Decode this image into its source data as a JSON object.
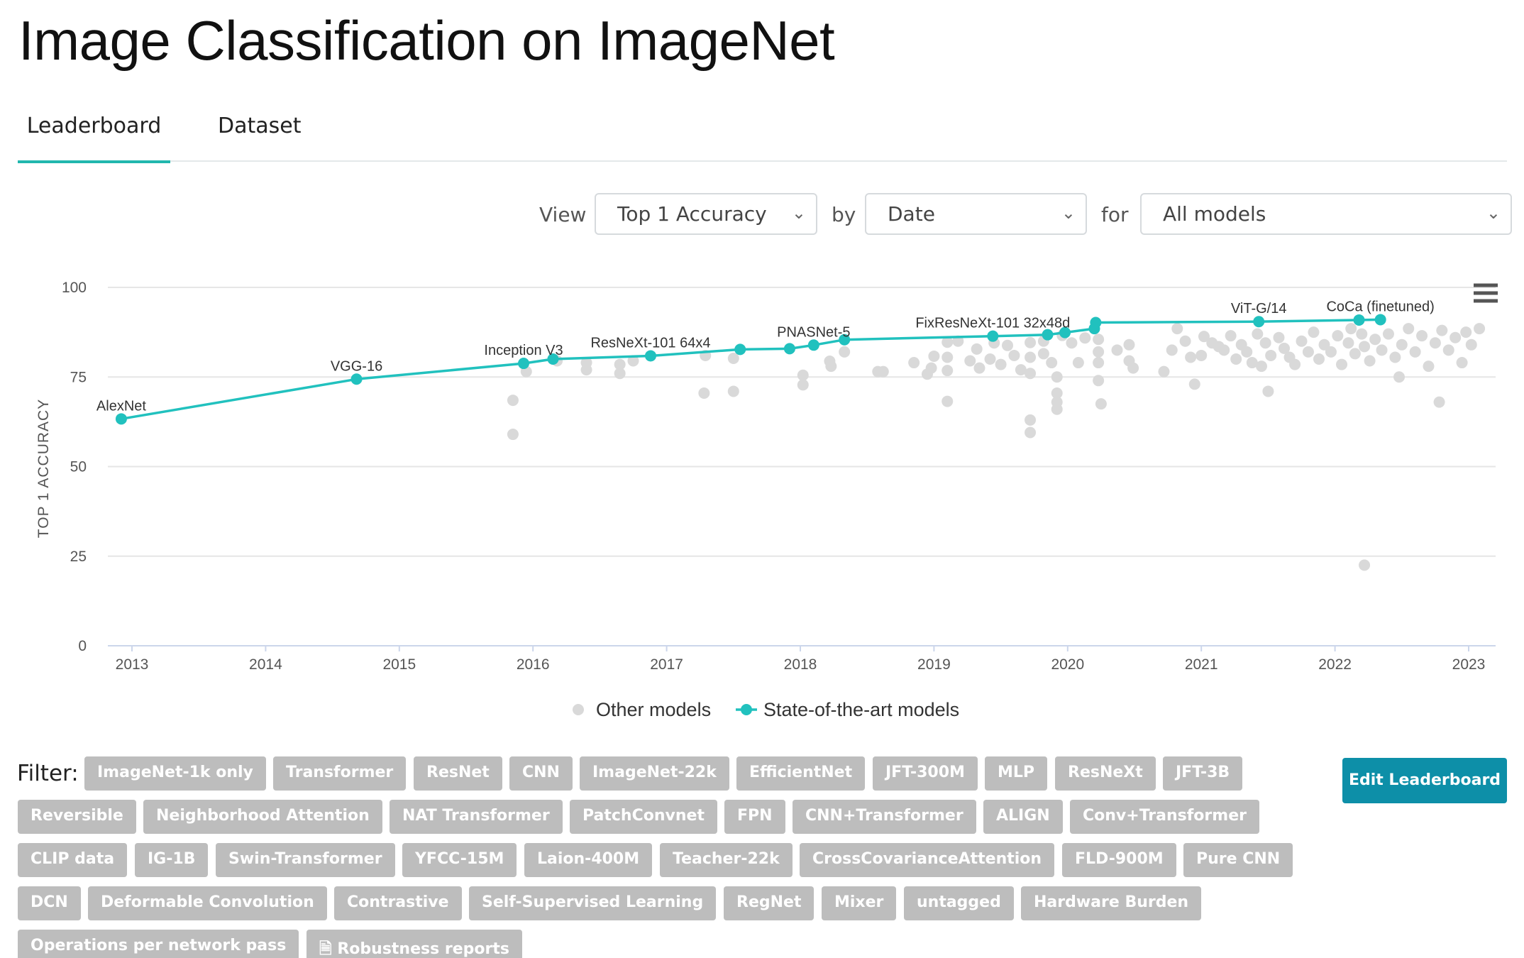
{
  "page": {
    "title": "Image Classification on ImageNet"
  },
  "tabs": [
    {
      "label": "Leaderboard"
    },
    {
      "label": "Dataset"
    }
  ],
  "controls": {
    "view_label": "View",
    "view_value": "Top 1 Accuracy",
    "by_label": "by",
    "by_value": "Date",
    "for_label": "for",
    "for_value": "All models"
  },
  "filter": {
    "label": "Filter:",
    "tags": [
      "ImageNet-1k only",
      "Transformer",
      "ResNet",
      "CNN",
      "ImageNet-22k",
      "EfficientNet",
      "JFT-300M",
      "MLP",
      "ResNeXt",
      "JFT-3B",
      "Reversible",
      "Neighborhood Attention",
      "NAT Transformer",
      "PatchConvnet",
      "FPN",
      "CNN+Transformer",
      "ALIGN",
      "Conv+Transformer",
      "CLIP data",
      "IG-1B",
      "Swin-Transformer",
      "YFCC-15M",
      "Laion-400M",
      "Teacher-22k",
      "CrossCovarianceAttention",
      "FLD-900M",
      "Pure CNN",
      "DCN",
      "Deformable Convolution",
      "Contrastive",
      "Self-Supervised Learning",
      "RegNet",
      "Mixer",
      "untagged",
      "Hardware Burden",
      "Operations per network pass",
      "Robustness reports"
    ],
    "edit_button": "Edit Leaderboard"
  },
  "chart_data": {
    "type": "scatter",
    "title": "",
    "xlabel": "",
    "ylabel": "TOP 1 ACCURACY",
    "xlim": [
      2012.9,
      2023.2
    ],
    "ylim": [
      0,
      100
    ],
    "x_ticks": [
      "2013",
      "2014",
      "2015",
      "2016",
      "2017",
      "2018",
      "2019",
      "2020",
      "2021",
      "2022",
      "2023"
    ],
    "y_ticks": [
      "0",
      "25",
      "50",
      "75",
      "100"
    ],
    "grid": true,
    "legend": {
      "position": "bottom-center",
      "items": [
        "Other models",
        "State-of-the-art models"
      ]
    },
    "colors": {
      "sota": "#21c1be",
      "other": "#d9d9d9"
    },
    "series": [
      {
        "name": "State-of-the-art models",
        "line": true,
        "points": [
          {
            "x": 2012.92,
            "y": 63.3,
            "label": "AlexNet"
          },
          {
            "x": 2014.68,
            "y": 74.4,
            "label": "VGG-16"
          },
          {
            "x": 2015.93,
            "y": 78.8,
            "label": "Inception V3"
          },
          {
            "x": 2016.15,
            "y": 80.0,
            "label": ""
          },
          {
            "x": 2016.88,
            "y": 80.9,
            "label": "ResNeXt-101 64x4"
          },
          {
            "x": 2017.55,
            "y": 82.7,
            "label": ""
          },
          {
            "x": 2017.92,
            "y": 82.9,
            "label": ""
          },
          {
            "x": 2018.1,
            "y": 83.9,
            "label": "PNASNet-5"
          },
          {
            "x": 2018.33,
            "y": 85.4,
            "label": ""
          },
          {
            "x": 2019.44,
            "y": 86.4,
            "label": "FixResNeXt-101 32x48d"
          },
          {
            "x": 2019.85,
            "y": 86.8,
            "label": ""
          },
          {
            "x": 2019.98,
            "y": 87.4,
            "label": ""
          },
          {
            "x": 2020.2,
            "y": 88.5,
            "label": ""
          },
          {
            "x": 2020.21,
            "y": 90.2,
            "label": ""
          },
          {
            "x": 2021.43,
            "y": 90.45,
            "label": "ViT-G/14"
          },
          {
            "x": 2022.18,
            "y": 90.9,
            "label": ""
          },
          {
            "x": 2022.34,
            "y": 91.0,
            "label": "CoCa (finetuned)"
          }
        ]
      },
      {
        "name": "Other models",
        "line": false,
        "points": [
          [
            2015.85,
            68.5
          ],
          [
            2015.85,
            59.0
          ],
          [
            2015.95,
            76.5
          ],
          [
            2016.18,
            79.5
          ],
          [
            2016.4,
            79.0
          ],
          [
            2016.4,
            77.0
          ],
          [
            2016.65,
            78.5
          ],
          [
            2016.65,
            76.0
          ],
          [
            2016.75,
            79.5
          ],
          [
            2017.29,
            81.0
          ],
          [
            2017.28,
            70.5
          ],
          [
            2017.5,
            80.2
          ],
          [
            2017.5,
            71.0
          ],
          [
            2018.02,
            75.5
          ],
          [
            2018.02,
            72.8
          ],
          [
            2018.22,
            79.4
          ],
          [
            2018.23,
            78.0
          ],
          [
            2018.33,
            82.0
          ],
          [
            2018.58,
            76.5
          ],
          [
            2018.62,
            76.5
          ],
          [
            2018.85,
            79.0
          ],
          [
            2018.95,
            75.8
          ],
          [
            2018.98,
            77.5
          ],
          [
            2019.0,
            80.8
          ],
          [
            2019.18,
            85.0
          ],
          [
            2019.1,
            84.7
          ],
          [
            2019.1,
            80.5
          ],
          [
            2019.1,
            76.8
          ],
          [
            2019.1,
            68.2
          ],
          [
            2019.27,
            79.5
          ],
          [
            2019.32,
            82.8
          ],
          [
            2019.34,
            77.5
          ],
          [
            2019.42,
            80.0
          ],
          [
            2019.45,
            84.5
          ],
          [
            2019.5,
            78.5
          ],
          [
            2019.55,
            83.8
          ],
          [
            2019.6,
            81.0
          ],
          [
            2019.65,
            77.0
          ],
          [
            2019.72,
            84.6
          ],
          [
            2019.72,
            76.0
          ],
          [
            2019.72,
            63.0
          ],
          [
            2019.72,
            59.5
          ],
          [
            2019.72,
            80.5
          ],
          [
            2019.82,
            85.0
          ],
          [
            2019.82,
            81.5
          ],
          [
            2019.88,
            79.0
          ],
          [
            2019.92,
            75.0
          ],
          [
            2019.92,
            70.5
          ],
          [
            2019.92,
            68.0
          ],
          [
            2019.92,
            66.0
          ],
          [
            2019.96,
            86.6
          ],
          [
            2020.03,
            84.5
          ],
          [
            2020.08,
            79.0
          ],
          [
            2020.13,
            85.9
          ],
          [
            2020.23,
            85.5
          ],
          [
            2020.23,
            82.0
          ],
          [
            2020.23,
            79.0
          ],
          [
            2020.23,
            74.0
          ],
          [
            2020.25,
            67.5
          ],
          [
            2020.37,
            82.5
          ],
          [
            2020.46,
            84.0
          ],
          [
            2020.46,
            79.5
          ],
          [
            2020.49,
            77.5
          ],
          [
            2020.72,
            76.5
          ],
          [
            2020.78,
            82.5
          ],
          [
            2020.82,
            88.5
          ],
          [
            2020.88,
            85.0
          ],
          [
            2020.92,
            80.5
          ],
          [
            2020.95,
            73.0
          ],
          [
            2021.0,
            81.0
          ],
          [
            2021.02,
            86.3
          ],
          [
            2021.08,
            84.5
          ],
          [
            2021.13,
            83.5
          ],
          [
            2021.17,
            82.5
          ],
          [
            2021.22,
            86.5
          ],
          [
            2021.26,
            80.0
          ],
          [
            2021.3,
            84.0
          ],
          [
            2021.34,
            82.0
          ],
          [
            2021.38,
            79.0
          ],
          [
            2021.42,
            87.0
          ],
          [
            2021.45,
            78.0
          ],
          [
            2021.48,
            84.5
          ],
          [
            2021.5,
            71.0
          ],
          [
            2021.52,
            81.0
          ],
          [
            2021.58,
            86.0
          ],
          [
            2021.62,
            83.0
          ],
          [
            2021.66,
            80.5
          ],
          [
            2021.7,
            78.5
          ],
          [
            2021.75,
            85.0
          ],
          [
            2021.8,
            82.0
          ],
          [
            2021.84,
            87.5
          ],
          [
            2021.88,
            80.0
          ],
          [
            2021.92,
            84.0
          ],
          [
            2021.97,
            82.0
          ],
          [
            2022.02,
            86.5
          ],
          [
            2022.05,
            78.5
          ],
          [
            2022.1,
            84.5
          ],
          [
            2022.12,
            88.5
          ],
          [
            2022.15,
            81.5
          ],
          [
            2022.2,
            87.0
          ],
          [
            2022.22,
            83.5
          ],
          [
            2022.22,
            22.5
          ],
          [
            2022.26,
            79.5
          ],
          [
            2022.3,
            85.5
          ],
          [
            2022.35,
            82.5
          ],
          [
            2022.4,
            87.0
          ],
          [
            2022.45,
            80.5
          ],
          [
            2022.48,
            75.0
          ],
          [
            2022.5,
            84.0
          ],
          [
            2022.55,
            88.5
          ],
          [
            2022.6,
            82.0
          ],
          [
            2022.65,
            86.5
          ],
          [
            2022.7,
            78.0
          ],
          [
            2022.75,
            84.5
          ],
          [
            2022.78,
            68.0
          ],
          [
            2022.8,
            88.0
          ],
          [
            2022.85,
            82.5
          ],
          [
            2022.9,
            86.0
          ],
          [
            2022.95,
            79.0
          ],
          [
            2022.98,
            87.5
          ],
          [
            2023.02,
            84.0
          ],
          [
            2023.08,
            88.5
          ]
        ]
      }
    ]
  }
}
